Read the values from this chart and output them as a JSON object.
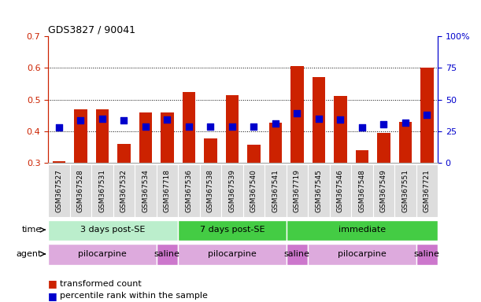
{
  "title": "GDS3827 / 90041",
  "samples": [
    "GSM367527",
    "GSM367528",
    "GSM367531",
    "GSM367532",
    "GSM367534",
    "GSM367718",
    "GSM367536",
    "GSM367538",
    "GSM367539",
    "GSM367540",
    "GSM367541",
    "GSM367719",
    "GSM367545",
    "GSM367546",
    "GSM367548",
    "GSM367549",
    "GSM367551",
    "GSM367721"
  ],
  "red_values": [
    0.305,
    0.47,
    0.47,
    0.36,
    0.46,
    0.46,
    0.525,
    0.378,
    0.515,
    0.357,
    0.428,
    0.607,
    0.572,
    0.512,
    0.34,
    0.395,
    0.43,
    0.6
  ],
  "blue_values": [
    0.412,
    0.434,
    0.44,
    0.434,
    0.416,
    0.438,
    0.416,
    0.414,
    0.416,
    0.414,
    0.426,
    0.457,
    0.44,
    0.438,
    0.413,
    0.422,
    0.428,
    0.453
  ],
  "ymin": 0.3,
  "ymax": 0.7,
  "y_ticks": [
    0.3,
    0.4,
    0.5,
    0.6,
    0.7
  ],
  "y2min": 0,
  "y2max": 100,
  "y2_ticks": [
    0,
    25,
    50,
    75,
    100
  ],
  "y2_labels": [
    "0",
    "25",
    "50",
    "75",
    "100%"
  ],
  "bar_color": "#cc2200",
  "dot_color": "#0000cc",
  "time_groups": [
    {
      "label": "3 days post-SE",
      "start": 0,
      "end": 5,
      "color": "#bbeebb"
    },
    {
      "label": "7 days post-SE",
      "start": 6,
      "end": 10,
      "color": "#44cc44"
    },
    {
      "label": "immediate",
      "start": 11,
      "end": 17,
      "color": "#44cc44"
    }
  ],
  "agent_groups": [
    {
      "label": "pilocarpine",
      "start": 0,
      "end": 4,
      "color": "#ddaadd"
    },
    {
      "label": "saline",
      "start": 5,
      "end": 5,
      "color": "#cc77cc"
    },
    {
      "label": "pilocarpine",
      "start": 6,
      "end": 10,
      "color": "#ddaadd"
    },
    {
      "label": "saline",
      "start": 11,
      "end": 11,
      "color": "#cc77cc"
    },
    {
      "label": "pilocarpine",
      "start": 12,
      "end": 16,
      "color": "#ddaadd"
    },
    {
      "label": "saline",
      "start": 17,
      "end": 17,
      "color": "#cc77cc"
    }
  ],
  "legend_red": "transformed count",
  "legend_blue": "percentile rank within the sample",
  "bar_width": 0.6,
  "dot_size": 35,
  "tick_color_left": "#cc2200",
  "tick_color_right": "#0000cc",
  "bg_color": "#ffffff",
  "plot_bg_color": "#ffffff",
  "label_row_color": "#dddddd",
  "grid_dotted_color": "#000000"
}
